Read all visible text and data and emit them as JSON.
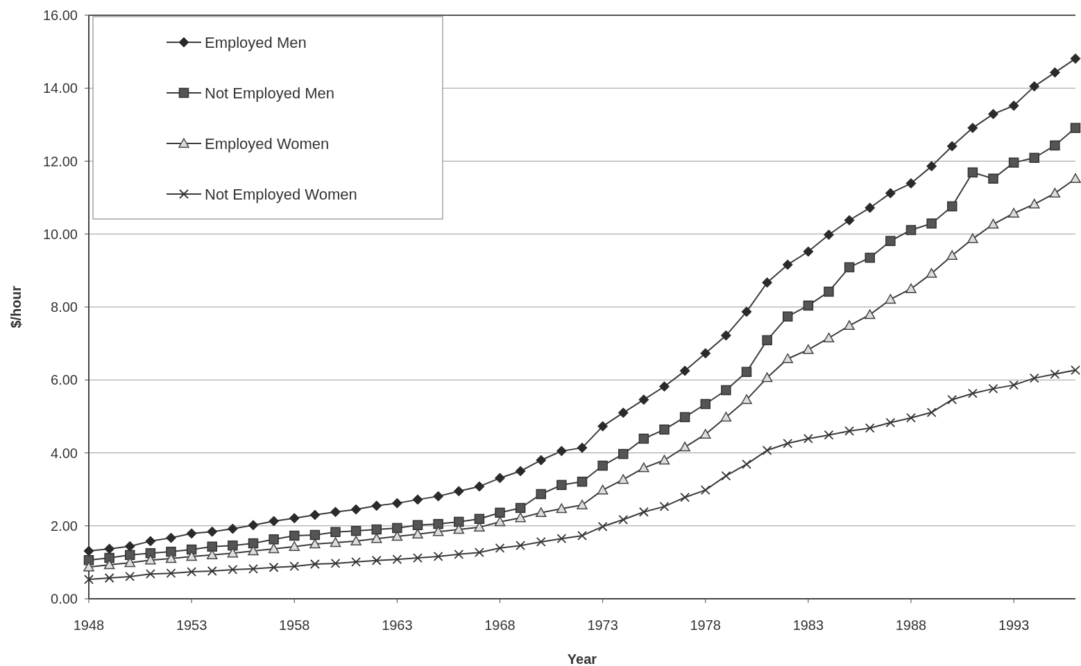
{
  "chart_data": {
    "type": "line",
    "xlabel": "Year",
    "ylabel": "$/hour",
    "x": [
      1948,
      1949,
      1950,
      1951,
      1952,
      1953,
      1954,
      1955,
      1956,
      1957,
      1958,
      1959,
      1960,
      1961,
      1962,
      1963,
      1964,
      1965,
      1966,
      1967,
      1968,
      1969,
      1970,
      1971,
      1972,
      1973,
      1974,
      1975,
      1976,
      1977,
      1978,
      1979,
      1980,
      1981,
      1982,
      1983,
      1984,
      1985,
      1986,
      1987,
      1988,
      1989,
      1990,
      1991,
      1992,
      1993,
      1994,
      1995,
      1996
    ],
    "series": [
      {
        "name": "Employed Men",
        "color": "#2a2a2a",
        "marker": "diamond",
        "values": [
          1.31,
          1.37,
          1.44,
          1.58,
          1.67,
          1.79,
          1.84,
          1.92,
          2.02,
          2.13,
          2.21,
          2.3,
          2.38,
          2.45,
          2.55,
          2.62,
          2.72,
          2.81,
          2.95,
          3.08,
          3.31,
          3.5,
          3.8,
          4.05,
          4.14,
          4.73,
          5.1,
          5.46,
          5.82,
          6.25,
          6.73,
          7.22,
          7.87,
          8.67,
          9.16,
          9.52,
          9.98,
          10.38,
          10.72,
          11.12,
          11.39,
          11.86,
          12.41,
          12.91,
          13.29,
          13.52,
          14.05,
          14.43,
          14.81
        ]
      },
      {
        "name": "Not Employed Men",
        "color": "#555555",
        "marker": "square",
        "values": [
          1.06,
          1.12,
          1.2,
          1.25,
          1.29,
          1.35,
          1.43,
          1.46,
          1.52,
          1.63,
          1.73,
          1.75,
          1.83,
          1.86,
          1.9,
          1.94,
          2.02,
          2.05,
          2.11,
          2.19,
          2.36,
          2.49,
          2.87,
          3.12,
          3.21,
          3.65,
          3.97,
          4.39,
          4.64,
          4.98,
          5.34,
          5.72,
          6.22,
          7.09,
          7.74,
          8.04,
          8.42,
          9.09,
          9.35,
          9.81,
          10.11,
          10.29,
          10.76,
          11.69,
          11.52,
          11.96,
          12.09,
          12.43,
          12.91
        ]
      },
      {
        "name": "Employed Women",
        "color": "#dddddd",
        "marker": "triangle",
        "values": [
          0.87,
          0.93,
          0.99,
          1.06,
          1.1,
          1.16,
          1.2,
          1.25,
          1.31,
          1.37,
          1.43,
          1.5,
          1.54,
          1.58,
          1.65,
          1.71,
          1.77,
          1.84,
          1.9,
          1.96,
          2.11,
          2.22,
          2.36,
          2.47,
          2.57,
          2.98,
          3.27,
          3.59,
          3.8,
          4.16,
          4.51,
          4.98,
          5.46,
          6.06,
          6.58,
          6.83,
          7.15,
          7.49,
          7.79,
          8.21,
          8.5,
          8.92,
          9.41,
          9.87,
          10.27,
          10.57,
          10.82,
          11.12,
          11.52
        ]
      },
      {
        "name": "Not Employed Women",
        "color": "#333333",
        "marker": "cross",
        "values": [
          0.53,
          0.57,
          0.61,
          0.68,
          0.7,
          0.74,
          0.76,
          0.8,
          0.82,
          0.86,
          0.89,
          0.95,
          0.97,
          1.01,
          1.05,
          1.08,
          1.12,
          1.16,
          1.22,
          1.27,
          1.39,
          1.46,
          1.56,
          1.65,
          1.73,
          1.98,
          2.17,
          2.38,
          2.53,
          2.78,
          2.98,
          3.37,
          3.69,
          4.07,
          4.26,
          4.39,
          4.49,
          4.6,
          4.68,
          4.83,
          4.96,
          5.11,
          5.46,
          5.63,
          5.76,
          5.86,
          6.05,
          6.16,
          6.27
        ]
      }
    ],
    "xlim": [
      1948,
      1996
    ],
    "xticks": [
      1948,
      1953,
      1958,
      1963,
      1968,
      1973,
      1978,
      1983,
      1988,
      1993
    ],
    "ylim": [
      0,
      16
    ],
    "yticks": [
      {
        "value": 0,
        "label": "0.00"
      },
      {
        "value": 2,
        "label": "2.00"
      },
      {
        "value": 4,
        "label": "4.00"
      },
      {
        "value": 6,
        "label": "6.00"
      },
      {
        "value": 8,
        "label": "8.00"
      },
      {
        "value": 10,
        "label": "10.00"
      },
      {
        "value": 12,
        "label": "12.00"
      },
      {
        "value": 14,
        "label": "14.00"
      },
      {
        "value": 16,
        "label": "16.00"
      }
    ],
    "grid": "y",
    "legend": "top left",
    "line_style": "solid"
  }
}
